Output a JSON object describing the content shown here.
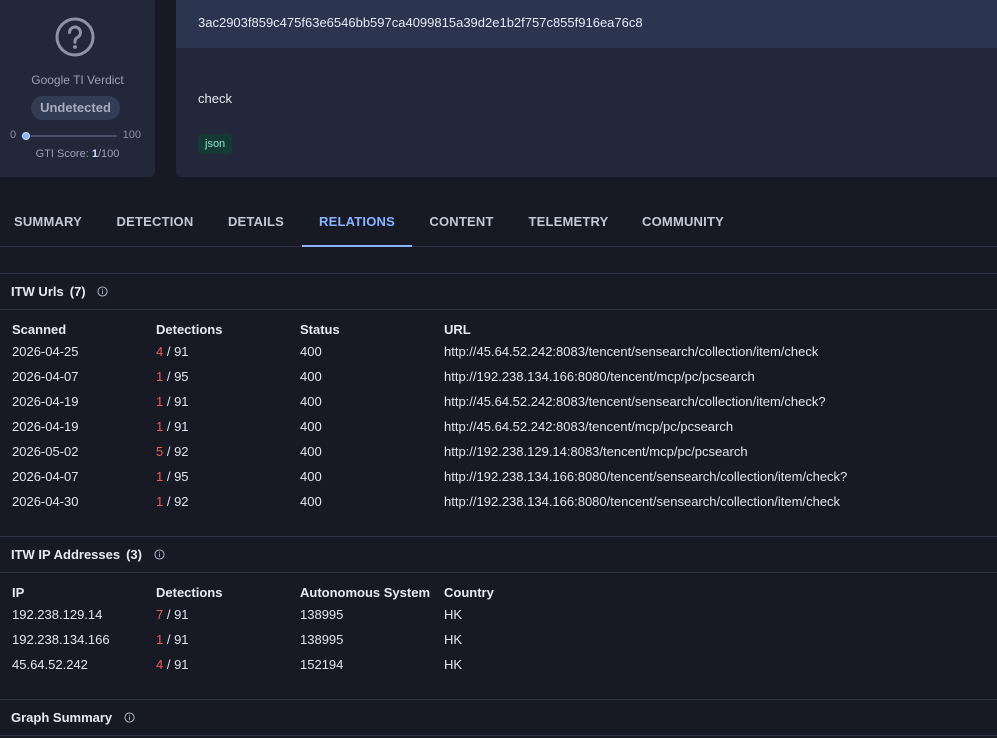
{
  "verdict": {
    "label": "Google TI Verdict",
    "badge": "Undetected",
    "score_min": "0",
    "score_max": "100",
    "score_prefix": "GTI Score: ",
    "score_value": "1",
    "score_suffix": "/100",
    "score_fraction": 0.01,
    "icon": "question-circle-icon"
  },
  "file": {
    "hash": "3ac2903f859c475f63e6546bb597ca4099815a39d2e1b2f757c855f916ea76c8",
    "name": "check",
    "tag": "json"
  },
  "tabs": [
    {
      "label": "SUMMARY"
    },
    {
      "label": "DETECTION"
    },
    {
      "label": "DETAILS"
    },
    {
      "label": "RELATIONS",
      "active": true
    },
    {
      "label": "CONTENT"
    },
    {
      "label": "TELEMETRY"
    },
    {
      "label": "COMMUNITY"
    }
  ],
  "itw_urls": {
    "title": "ITW Urls",
    "count": "(7)",
    "columns": [
      "Scanned",
      "Detections",
      "Status",
      "URL"
    ],
    "rows": [
      {
        "scanned": "2026-04-25",
        "det": "4",
        "total": "91",
        "status": "400",
        "url": "http://45.64.52.242:8083/tencent/sensearch/collection/item/check"
      },
      {
        "scanned": "2026-04-07",
        "det": "1",
        "total": "95",
        "status": "400",
        "url": "http://192.238.134.166:8080/tencent/mcp/pc/pcsearch"
      },
      {
        "scanned": "2026-04-19",
        "det": "1",
        "total": "91",
        "status": "400",
        "url": "http://45.64.52.242:8083/tencent/sensearch/collection/item/check?"
      },
      {
        "scanned": "2026-04-19",
        "det": "1",
        "total": "91",
        "status": "400",
        "url": "http://45.64.52.242:8083/tencent/mcp/pc/pcsearch"
      },
      {
        "scanned": "2026-05-02",
        "det": "5",
        "total": "92",
        "status": "400",
        "url": "http://192.238.129.14:8083/tencent/mcp/pc/pcsearch"
      },
      {
        "scanned": "2026-04-07",
        "det": "1",
        "total": "95",
        "status": "400",
        "url": "http://192.238.134.166:8080/tencent/sensearch/collection/item/check?"
      },
      {
        "scanned": "2026-04-30",
        "det": "1",
        "total": "92",
        "status": "400",
        "url": "http://192.238.134.166:8080/tencent/sensearch/collection/item/check"
      }
    ]
  },
  "itw_ips": {
    "title": "ITW IP Addresses",
    "count": "(3)",
    "columns": [
      "IP",
      "Detections",
      "Autonomous System",
      "Country"
    ],
    "rows": [
      {
        "ip": "192.238.129.14",
        "det": "7",
        "total": "91",
        "as": "138995",
        "country": "HK"
      },
      {
        "ip": "192.238.134.166",
        "det": "1",
        "total": "91",
        "as": "138995",
        "country": "HK"
      },
      {
        "ip": "45.64.52.242",
        "det": "4",
        "total": "91",
        "as": "152194",
        "country": "HK"
      }
    ]
  },
  "graph_summary": {
    "title": "Graph Summary"
  },
  "colors": {
    "background": "#171925",
    "card": "#22283a",
    "accent": "#8ab4ff",
    "detection_positive": "#f25a55"
  }
}
